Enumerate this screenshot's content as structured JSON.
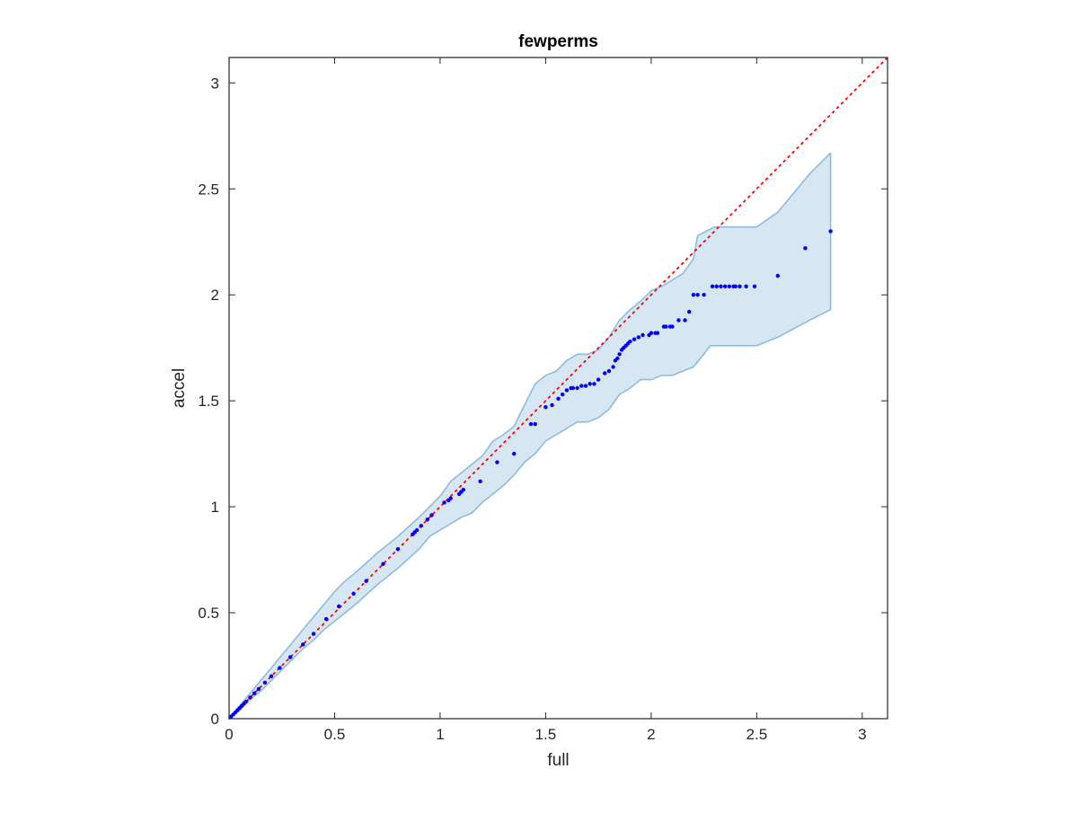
{
  "chart_data": {
    "type": "scatter",
    "title": "fewperms",
    "xlabel": "full",
    "ylabel": "accel",
    "xlim": [
      0,
      3.12
    ],
    "ylim": [
      0,
      3.12
    ],
    "xticks": [
      "0",
      "0.5",
      "1",
      "1.5",
      "2",
      "2.5",
      "3"
    ],
    "yticks": [
      "0",
      "0.5",
      "1",
      "1.5",
      "2",
      "2.5",
      "3"
    ],
    "grid": false,
    "legend": "none",
    "colors": {
      "points": "#0000ff",
      "reference_line": "#ff0000",
      "band_fill": "#d6e6f2",
      "band_edge": "#8ebcdc",
      "axes": "#262626"
    },
    "reference_line": {
      "style": "dotted",
      "x": [
        0,
        3.12
      ],
      "y": [
        0,
        3.12
      ]
    },
    "band_upper": [
      [
        0,
        0
      ],
      [
        0.05,
        0.06
      ],
      [
        0.1,
        0.12
      ],
      [
        0.15,
        0.18
      ],
      [
        0.2,
        0.24
      ],
      [
        0.25,
        0.3
      ],
      [
        0.3,
        0.36
      ],
      [
        0.35,
        0.42
      ],
      [
        0.4,
        0.48
      ],
      [
        0.45,
        0.54
      ],
      [
        0.5,
        0.6
      ],
      [
        0.55,
        0.65
      ],
      [
        0.6,
        0.69
      ],
      [
        0.7,
        0.78
      ],
      [
        0.8,
        0.86
      ],
      [
        0.9,
        0.95
      ],
      [
        1.0,
        1.05
      ],
      [
        1.05,
        1.12
      ],
      [
        1.1,
        1.16
      ],
      [
        1.2,
        1.24
      ],
      [
        1.25,
        1.31
      ],
      [
        1.3,
        1.34
      ],
      [
        1.35,
        1.38
      ],
      [
        1.4,
        1.48
      ],
      [
        1.45,
        1.58
      ],
      [
        1.5,
        1.62
      ],
      [
        1.55,
        1.64
      ],
      [
        1.6,
        1.69
      ],
      [
        1.65,
        1.72
      ],
      [
        1.7,
        1.72
      ],
      [
        1.75,
        1.74
      ],
      [
        1.8,
        1.8
      ],
      [
        1.85,
        1.88
      ],
      [
        1.9,
        1.93
      ],
      [
        1.95,
        1.97
      ],
      [
        2.0,
        2.02
      ],
      [
        2.05,
        2.04
      ],
      [
        2.1,
        2.07
      ],
      [
        2.15,
        2.1
      ],
      [
        2.2,
        2.17
      ],
      [
        2.22,
        2.28
      ],
      [
        2.3,
        2.32
      ],
      [
        2.5,
        2.32
      ],
      [
        2.6,
        2.39
      ],
      [
        2.75,
        2.57
      ],
      [
        2.85,
        2.67
      ]
    ],
    "band_lower": [
      [
        0,
        0
      ],
      [
        0.05,
        0.04
      ],
      [
        0.1,
        0.09
      ],
      [
        0.15,
        0.13
      ],
      [
        0.2,
        0.18
      ],
      [
        0.25,
        0.23
      ],
      [
        0.3,
        0.28
      ],
      [
        0.35,
        0.33
      ],
      [
        0.4,
        0.37
      ],
      [
        0.45,
        0.42
      ],
      [
        0.5,
        0.46
      ],
      [
        0.55,
        0.5
      ],
      [
        0.6,
        0.54
      ],
      [
        0.7,
        0.63
      ],
      [
        0.8,
        0.71
      ],
      [
        0.9,
        0.8
      ],
      [
        0.95,
        0.86
      ],
      [
        1.0,
        0.89
      ],
      [
        1.05,
        0.92
      ],
      [
        1.1,
        0.95
      ],
      [
        1.15,
        0.97
      ],
      [
        1.2,
        1.02
      ],
      [
        1.25,
        1.06
      ],
      [
        1.3,
        1.1
      ],
      [
        1.35,
        1.15
      ],
      [
        1.4,
        1.21
      ],
      [
        1.45,
        1.25
      ],
      [
        1.5,
        1.31
      ],
      [
        1.55,
        1.34
      ],
      [
        1.6,
        1.37
      ],
      [
        1.65,
        1.4
      ],
      [
        1.7,
        1.4
      ],
      [
        1.75,
        1.42
      ],
      [
        1.8,
        1.46
      ],
      [
        1.85,
        1.53
      ],
      [
        1.9,
        1.56
      ],
      [
        1.95,
        1.6
      ],
      [
        2.0,
        1.6
      ],
      [
        2.05,
        1.62
      ],
      [
        2.1,
        1.62
      ],
      [
        2.2,
        1.66
      ],
      [
        2.25,
        1.72
      ],
      [
        2.28,
        1.76
      ],
      [
        2.5,
        1.76
      ],
      [
        2.6,
        1.8
      ],
      [
        2.75,
        1.88
      ],
      [
        2.85,
        1.93
      ]
    ],
    "x": [
      0.01,
      0.02,
      0.03,
      0.04,
      0.05,
      0.06,
      0.07,
      0.08,
      0.1,
      0.12,
      0.14,
      0.17,
      0.2,
      0.24,
      0.29,
      0.35,
      0.4,
      0.46,
      0.52,
      0.59,
      0.65,
      0.73,
      0.8,
      0.87,
      0.88,
      0.89,
      0.91,
      0.94,
      0.96,
      1.02,
      1.04,
      1.05,
      1.09,
      1.1,
      1.11,
      1.19,
      1.27,
      1.35,
      1.43,
      1.45,
      1.5,
      1.53,
      1.56,
      1.58,
      1.6,
      1.62,
      1.63,
      1.65,
      1.67,
      1.69,
      1.71,
      1.73,
      1.75,
      1.78,
      1.8,
      1.82,
      1.83,
      1.84,
      1.85,
      1.86,
      1.87,
      1.88,
      1.89,
      1.9,
      1.92,
      1.94,
      1.96,
      1.99,
      2.0,
      2.02,
      2.03,
      2.06,
      2.07,
      2.09,
      2.1,
      2.13,
      2.16,
      2.18,
      2.2,
      2.22,
      2.25,
      2.29,
      2.31,
      2.33,
      2.35,
      2.37,
      2.39,
      2.4,
      2.42,
      2.45,
      2.49,
      2.6,
      2.73,
      2.85
    ],
    "y": [
      0.01,
      0.02,
      0.03,
      0.04,
      0.05,
      0.06,
      0.07,
      0.08,
      0.1,
      0.12,
      0.14,
      0.17,
      0.2,
      0.24,
      0.29,
      0.35,
      0.4,
      0.47,
      0.53,
      0.59,
      0.65,
      0.73,
      0.8,
      0.87,
      0.88,
      0.89,
      0.91,
      0.94,
      0.96,
      1.02,
      1.03,
      1.04,
      1.06,
      1.07,
      1.08,
      1.12,
      1.21,
      1.25,
      1.39,
      1.39,
      1.47,
      1.48,
      1.51,
      1.53,
      1.55,
      1.56,
      1.56,
      1.56,
      1.57,
      1.57,
      1.58,
      1.58,
      1.6,
      1.63,
      1.64,
      1.66,
      1.69,
      1.7,
      1.72,
      1.74,
      1.75,
      1.76,
      1.77,
      1.78,
      1.79,
      1.8,
      1.81,
      1.81,
      1.82,
      1.82,
      1.82,
      1.85,
      1.85,
      1.85,
      1.85,
      1.88,
      1.88,
      1.92,
      2.0,
      2.0,
      2.0,
      2.04,
      2.04,
      2.04,
      2.04,
      2.04,
      2.04,
      2.04,
      2.04,
      2.04,
      2.04,
      2.09,
      2.22,
      2.3
    ]
  }
}
